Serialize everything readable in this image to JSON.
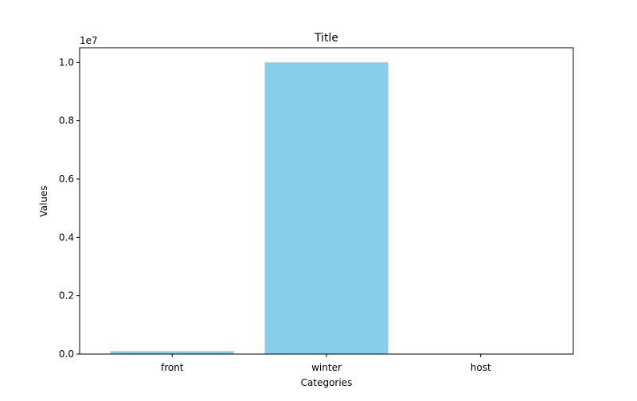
{
  "chart_data": {
    "type": "bar",
    "title": "Title",
    "xlabel": "Categories",
    "ylabel": "Values",
    "categories": [
      "front",
      "winter",
      "host"
    ],
    "values": [
      100000,
      10000000,
      0
    ],
    "ylim": [
      0,
      10500000
    ],
    "yticks": [
      0,
      2000000,
      4000000,
      6000000,
      8000000,
      10000000
    ],
    "ytick_labels": [
      "0.0",
      "0.2",
      "0.4",
      "0.6",
      "0.8",
      "1.0"
    ],
    "y_offset_label": "1e7",
    "bar_color": "#87ceeb",
    "grid": false,
    "legend": "none"
  }
}
